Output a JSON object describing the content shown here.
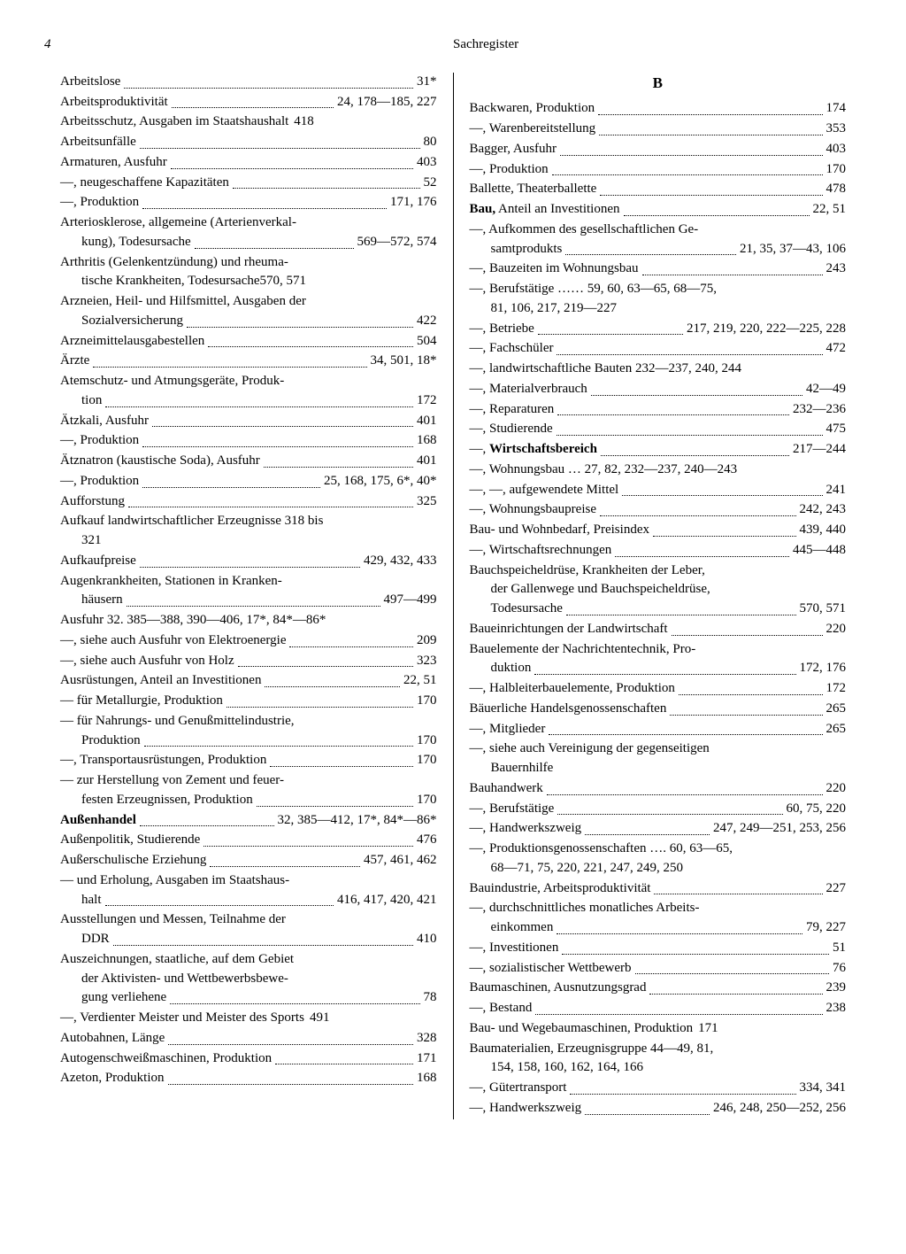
{
  "header": {
    "page_number": "4",
    "title": "Sachregister"
  },
  "section_b_letter": "B",
  "left_column": [
    {
      "text": "Arbeitslose",
      "pages": "31*"
    },
    {
      "text": "Arbeitsproduktivität",
      "pages": "24, 178—185, 227"
    },
    {
      "text": "Arbeitsschutz, Ausgaben im Staatshaushalt",
      "pages": "418",
      "nodots": true
    },
    {
      "text": "Arbeitsunfälle",
      "pages": "80"
    },
    {
      "text": "Armaturen, Ausfuhr",
      "pages": "403"
    },
    {
      "text": "—, neugeschaffene Kapazitäten",
      "pages": "52"
    },
    {
      "text": "—, Produktion",
      "pages": "171, 176"
    },
    {
      "wrap": true,
      "lines": [
        "Arteriosklerose, allgemeine (Arterienverkal-"
      ],
      "last_text": "kung), Todesursache",
      "pages": "569—572, 574",
      "hang": true
    },
    {
      "wrap": true,
      "lines": [
        "Arthritis (Gelenkentzündung) und rheuma-"
      ],
      "last_text": "tische Krankheiten, Todesursache",
      "pages": "570, 571",
      "hang": true,
      "nodots": true
    },
    {
      "wrap": true,
      "lines": [
        "Arzneien, Heil- und Hilfsmittel, Ausgaben der"
      ],
      "last_text": "Sozialversicherung",
      "pages": "422",
      "hang": true
    },
    {
      "text": "Arzneimittelausgabestellen",
      "pages": "504"
    },
    {
      "text": "Ärzte",
      "pages": "34, 501, 18*"
    },
    {
      "wrap": true,
      "lines": [
        "Atemschutz- und Atmungsgeräte, Produk-"
      ],
      "last_text": "tion",
      "pages": "172",
      "hang": true
    },
    {
      "text": "Ätzkali, Ausfuhr",
      "pages": "401"
    },
    {
      "text": "—, Produktion",
      "pages": "168"
    },
    {
      "text": "Ätznatron (kaustische Soda), Ausfuhr",
      "pages": "401"
    },
    {
      "text": "—, Produktion",
      "pages": "25, 168, 175, 6*, 40*"
    },
    {
      "text": "Aufforstung",
      "pages": "325"
    },
    {
      "wrap": true,
      "lines": [
        "Aufkauf landwirtschaftlicher Erzeugnisse 318 bis"
      ],
      "last_text": "321",
      "pages": "",
      "hang": true,
      "nodots": true
    },
    {
      "text": "Aufkaufpreise",
      "pages": "429, 432, 433"
    },
    {
      "wrap": true,
      "lines": [
        "Augenkrankheiten, Stationen in Kranken-"
      ],
      "last_text": "häusern",
      "pages": "497—499",
      "hang": true
    },
    {
      "text": "Ausfuhr 32. 385—388, 390—406, 17*, 84*—86*",
      "pages": "",
      "nodots": true
    },
    {
      "text": "—, siehe auch Ausfuhr von Elektroenergie",
      "pages": "209"
    },
    {
      "text": "—, siehe auch Ausfuhr von Holz",
      "pages": "323"
    },
    {
      "text": "Ausrüstungen, Anteil an Investitionen",
      "pages": "22, 51"
    },
    {
      "text": "— für Metallurgie, Produktion",
      "pages": "170"
    },
    {
      "wrap": true,
      "lines": [
        "— für Nahrungs- und Genußmittelindustrie,"
      ],
      "last_text": "Produktion",
      "pages": "170",
      "hang": true
    },
    {
      "text": "—, Transportausrüstungen, Produktion",
      "pages": "170"
    },
    {
      "wrap": true,
      "lines": [
        "— zur Herstellung von Zement und feuer-"
      ],
      "last_text": "festen Erzeugnissen, Produktion",
      "pages": "170",
      "hang": true
    },
    {
      "text_html": "<b>Außenhandel</b>",
      "pages": "32, 385—412, 17*, 84*—86*"
    },
    {
      "text": "Außenpolitik, Studierende",
      "pages": "476"
    },
    {
      "text": "Außerschulische Erziehung",
      "pages": "457, 461, 462"
    },
    {
      "wrap": true,
      "lines": [
        "— und Erholung, Ausgaben im Staatshaus-"
      ],
      "last_text": "halt",
      "pages": "416, 417, 420, 421",
      "hang": true
    },
    {
      "wrap": true,
      "lines": [
        "Ausstellungen und Messen, Teilnahme der"
      ],
      "last_text": "DDR",
      "pages": "410",
      "hang": true
    },
    {
      "wrap": true,
      "lines": [
        "Auszeichnungen, staatliche, auf dem Gebiet",
        "der Aktivisten- und Wettbewerbsbewe-"
      ],
      "last_text": "gung verliehene",
      "pages": "78",
      "hang": true
    },
    {
      "text": "—, Verdienter Meister und Meister des Sports",
      "pages": "491",
      "nodots": true
    },
    {
      "text": "Autobahnen, Länge",
      "pages": "328"
    },
    {
      "text": "Autogenschweißmaschinen, Produktion",
      "pages": "171"
    },
    {
      "text": "Azeton, Produktion",
      "pages": "168"
    }
  ],
  "right_column": [
    {
      "text": "Backwaren, Produktion",
      "pages": "174"
    },
    {
      "text": "—, Warenbereitstellung",
      "pages": "353"
    },
    {
      "text": "Bagger, Ausfuhr",
      "pages": "403"
    },
    {
      "text": "—, Produktion",
      "pages": "170"
    },
    {
      "text": "Ballette, Theaterballette",
      "pages": "478"
    },
    {
      "text_html": "<b>Bau,</b> Anteil an Investitionen",
      "pages": "22, 51"
    },
    {
      "wrap": true,
      "lines": [
        "—, Aufkommen des gesellschaftlichen Ge-"
      ],
      "last_text": "samtprodukts",
      "pages": "21, 35, 37—43, 106",
      "hang": true
    },
    {
      "text": "—, Bauzeiten im Wohnungsbau",
      "pages": "243"
    },
    {
      "wrap": true,
      "lines": [
        "—, Berufstätige …… 59, 60, 63—65, 68—75,"
      ],
      "last_text": "81, 106, 217, 219—227",
      "pages": "",
      "hang": true,
      "nodots": true
    },
    {
      "text": "—, Betriebe",
      "pages": "217, 219, 220, 222—225, 228"
    },
    {
      "text": "—, Fachschüler",
      "pages": "472"
    },
    {
      "text": "—, landwirtschaftliche Bauten 232—237, 240, 244",
      "pages": "",
      "nodots": true
    },
    {
      "text": "—, Materialverbrauch",
      "pages": "42—49"
    },
    {
      "text": "—, Reparaturen",
      "pages": "232—236"
    },
    {
      "text": "—, Studierende",
      "pages": "475"
    },
    {
      "text_html": "—, <b>Wirtschaftsbereich</b>",
      "pages": "217—244"
    },
    {
      "text": "—, Wohnungsbau … 27, 82, 232—237, 240—243",
      "pages": "",
      "nodots": true
    },
    {
      "text": "—, —, aufgewendete Mittel",
      "pages": "241"
    },
    {
      "text": "—, Wohnungsbaupreise",
      "pages": "242, 243"
    },
    {
      "text": "Bau- und Wohnbedarf, Preisindex",
      "pages": "439, 440"
    },
    {
      "text": "—, Wirtschaftsrechnungen",
      "pages": "445—448"
    },
    {
      "wrap": true,
      "lines": [
        "Bauchspeicheldrüse, Krankheiten der Leber,",
        "der Gallenwege und Bauchspeicheldrüse,"
      ],
      "last_text": "Todesursache",
      "pages": "570, 571",
      "hang": true
    },
    {
      "text": "Baueinrichtungen der Landwirtschaft",
      "pages": "220"
    },
    {
      "wrap": true,
      "lines": [
        "Bauelemente der Nachrichtentechnik, Pro-"
      ],
      "last_text": "duktion",
      "pages": "172, 176",
      "hang": true
    },
    {
      "text": "—, Halbleiterbauelemente, Produktion",
      "pages": "172"
    },
    {
      "text": "Bäuerliche Handelsgenossenschaften",
      "pages": "265"
    },
    {
      "text": "—, Mitglieder",
      "pages": "265"
    },
    {
      "wrap": true,
      "lines": [
        "—, siehe auch Vereinigung der gegenseitigen"
      ],
      "last_text": "Bauernhilfe",
      "pages": "",
      "hang": true,
      "nodots": true
    },
    {
      "text": "Bauhandwerk",
      "pages": "220"
    },
    {
      "text": "—, Berufstätige",
      "pages": "60, 75, 220"
    },
    {
      "text": "—, Handwerkszweig",
      "pages": "247, 249—251, 253, 256"
    },
    {
      "wrap": true,
      "lines": [
        "—, Produktionsgenossenschaften …. 60, 63—65,"
      ],
      "last_text": "68—71, 75, 220, 221, 247, 249, 250",
      "pages": "",
      "hang": true,
      "nodots": true
    },
    {
      "text": "Bauindustrie, Arbeitsproduktivität",
      "pages": "227"
    },
    {
      "wrap": true,
      "lines": [
        "—, durchschnittliches monatliches Arbeits-"
      ],
      "last_text": "einkommen",
      "pages": "79, 227",
      "hang": true
    },
    {
      "text": "—, Investitionen",
      "pages": "51"
    },
    {
      "text": "—, sozialistischer Wettbewerb",
      "pages": "76"
    },
    {
      "text": "Baumaschinen, Ausnutzungsgrad",
      "pages": "239"
    },
    {
      "text": "—, Bestand",
      "pages": "238"
    },
    {
      "text": "Bau- und Wegebaumaschinen, Produktion",
      "pages": "171",
      "nodots": true
    },
    {
      "wrap": true,
      "lines": [
        "Baumaterialien, Erzeugnisgruppe 44—49, 81,"
      ],
      "last_text": "154, 158, 160, 162, 164, 166",
      "pages": "",
      "hang": true,
      "nodots": true
    },
    {
      "text": "—, Gütertransport",
      "pages": "334, 341"
    },
    {
      "text": "—, Handwerkszweig",
      "pages": "246, 248, 250—252, 256"
    }
  ]
}
